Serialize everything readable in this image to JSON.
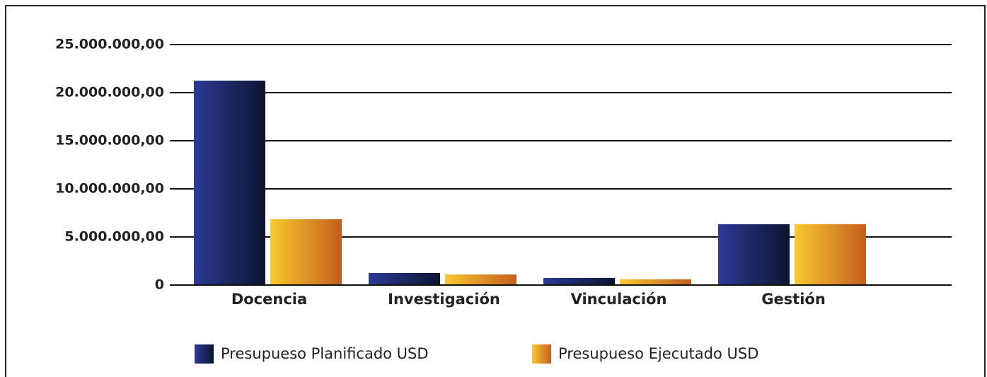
{
  "chart_data": {
    "type": "bar",
    "categories": [
      "Docencia",
      "Investigación",
      "Vinculación",
      "Gestión"
    ],
    "series": [
      {
        "name": "Presupueso Planificado USD",
        "color": [
          "#2d3a96",
          "#0c1430"
        ],
        "values": [
          21250000,
          1250000,
          740000,
          6320000
        ]
      },
      {
        "name": "Presupueso Ejecutado USD",
        "color": [
          "#f8c92f",
          "#c55e1e"
        ],
        "values": [
          6840000,
          1100000,
          600000,
          6320000
        ]
      }
    ],
    "ylim": [
      0,
      25000000
    ],
    "yticks": [
      0,
      {
        "value": 5000000,
        "label": "5.000.000,00"
      },
      {
        "value": 10000000,
        "label": "10.000.000,00"
      },
      {
        "value": 15000000,
        "label": "15.000.000,00"
      },
      {
        "value": 20000000,
        "label": "20.000.000,00"
      },
      {
        "value": 25000000,
        "label": "25.000.000,00"
      }
    ],
    "grid": true,
    "legend": "bottom"
  }
}
